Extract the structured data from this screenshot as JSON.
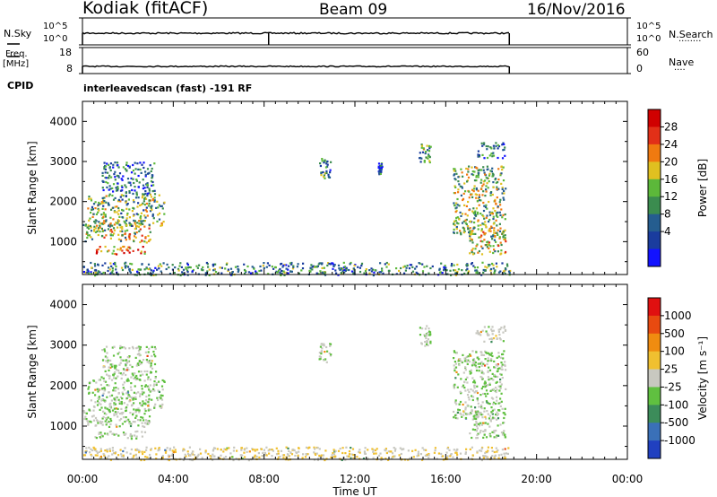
{
  "header": {
    "station": "Kodiak (fitACF)",
    "beam": "Beam 09",
    "date": "16/Nov/2016"
  },
  "panels": {
    "nsky": {
      "left_label": "N.Sky",
      "left_ticks": [
        "10^5",
        "10^0"
      ],
      "right_ticks": [
        "10^5",
        "10^0"
      ],
      "right_label": "N.Search",
      "right_dots": "........"
    },
    "freq": {
      "left_label_1": "Freq.",
      "left_label_2": "[MHz]",
      "left_ticks": [
        "18",
        "8"
      ],
      "right_ticks": [
        "60",
        "0"
      ],
      "right_label": "Nave",
      "right_dots": "...."
    },
    "cpid": {
      "label": "CPID",
      "value": "interleavedscan (fast) -191 RF"
    }
  },
  "chart_data": [
    {
      "type": "heatmap",
      "name": "power",
      "xlabel": "",
      "ylabel": "Slant Range [km]",
      "xlim": [
        "00:00",
        "24:00"
      ],
      "ylim": [
        180,
        4500
      ],
      "yticks": [
        "1000",
        "2000",
        "3000",
        "4000"
      ],
      "xticks": [
        "00:00",
        "04:00",
        "08:00",
        "12:00",
        "16:00",
        "20:00",
        "00:00"
      ],
      "colorbar": {
        "label": "Power [dB]",
        "ticks": [
          "28",
          "24",
          "20",
          "16",
          "12",
          "8",
          "4"
        ],
        "colors": [
          "#1212ff",
          "#1a3c9e",
          "#255d8f",
          "#3b8c4f",
          "#5cb83a",
          "#e0c020",
          "#f07a10",
          "#e23018",
          "#d00000"
        ]
      },
      "regions": [
        {
          "t0": 0.0,
          "t1": 3.0,
          "r0": 1000,
          "r1": 1500,
          "level": 0.55
        },
        {
          "t0": 0.5,
          "t1": 2.8,
          "r0": 700,
          "r1": 900,
          "level": 0.75
        },
        {
          "t0": 0.2,
          "t1": 3.6,
          "r0": 1400,
          "r1": 2200,
          "level": 0.45
        },
        {
          "t0": 0.8,
          "t1": 3.2,
          "r0": 2200,
          "r1": 3000,
          "level": 0.25
        },
        {
          "t0": 10.4,
          "t1": 10.9,
          "r0": 2600,
          "r1": 3100,
          "level": 0.35
        },
        {
          "t0": 13.0,
          "t1": 13.2,
          "r0": 2700,
          "r1": 3000,
          "level": 0.2
        },
        {
          "t0": 14.8,
          "t1": 15.3,
          "r0": 3000,
          "r1": 3500,
          "level": 0.4
        },
        {
          "t0": 16.3,
          "t1": 18.6,
          "r0": 1200,
          "r1": 2900,
          "level": 0.5
        },
        {
          "t0": 17.0,
          "t1": 18.6,
          "r0": 700,
          "r1": 1400,
          "level": 0.55
        },
        {
          "t0": 17.3,
          "t1": 18.6,
          "r0": 3100,
          "r1": 3500,
          "level": 0.3
        },
        {
          "t0": 0.0,
          "t1": 18.8,
          "r0": 180,
          "r1": 500,
          "level": 0.35
        }
      ]
    },
    {
      "type": "heatmap",
      "name": "velocity",
      "xlabel": "Time UT",
      "ylabel": "Slant Range [km]",
      "xlim": [
        "00:00",
        "24:00"
      ],
      "ylim": [
        180,
        4500
      ],
      "yticks": [
        "1000",
        "2000",
        "3000",
        "4000"
      ],
      "xticks": [
        "00:00",
        "04:00",
        "08:00",
        "12:00",
        "16:00",
        "20:00",
        "00:00"
      ],
      "colorbar": {
        "label": "Velocity [m s⁻¹]",
        "ticks": [
          "1000",
          "500",
          "100",
          "25",
          "-25",
          "-100",
          "-500",
          "-1000"
        ],
        "colors": [
          "#2040c0",
          "#3a70b8",
          "#3c8c5a",
          "#60c040",
          "#c8c8c0",
          "#f0c030",
          "#f08c10",
          "#e84a10",
          "#e01010"
        ]
      },
      "regions": [
        {
          "t0": 0.0,
          "t1": 3.0,
          "r0": 1000,
          "r1": 1500,
          "level": 0.45
        },
        {
          "t0": 0.5,
          "t1": 2.8,
          "r0": 700,
          "r1": 900,
          "level": 0.45
        },
        {
          "t0": 0.2,
          "t1": 3.6,
          "r0": 1400,
          "r1": 2200,
          "level": 0.45
        },
        {
          "t0": 0.8,
          "t1": 3.2,
          "r0": 2200,
          "r1": 3000,
          "level": 0.45
        },
        {
          "t0": 10.4,
          "t1": 10.9,
          "r0": 2600,
          "r1": 3100,
          "level": 0.45
        },
        {
          "t0": 14.8,
          "t1": 15.3,
          "r0": 3000,
          "r1": 3500,
          "level": 0.45
        },
        {
          "t0": 16.3,
          "t1": 18.6,
          "r0": 1200,
          "r1": 2900,
          "level": 0.45
        },
        {
          "t0": 17.0,
          "t1": 18.6,
          "r0": 700,
          "r1": 1400,
          "level": 0.45
        },
        {
          "t0": 17.3,
          "t1": 18.6,
          "r0": 3100,
          "r1": 3500,
          "level": 0.5
        },
        {
          "t0": 0.0,
          "t1": 18.8,
          "r0": 180,
          "r1": 500,
          "level": 0.55
        }
      ]
    }
  ]
}
